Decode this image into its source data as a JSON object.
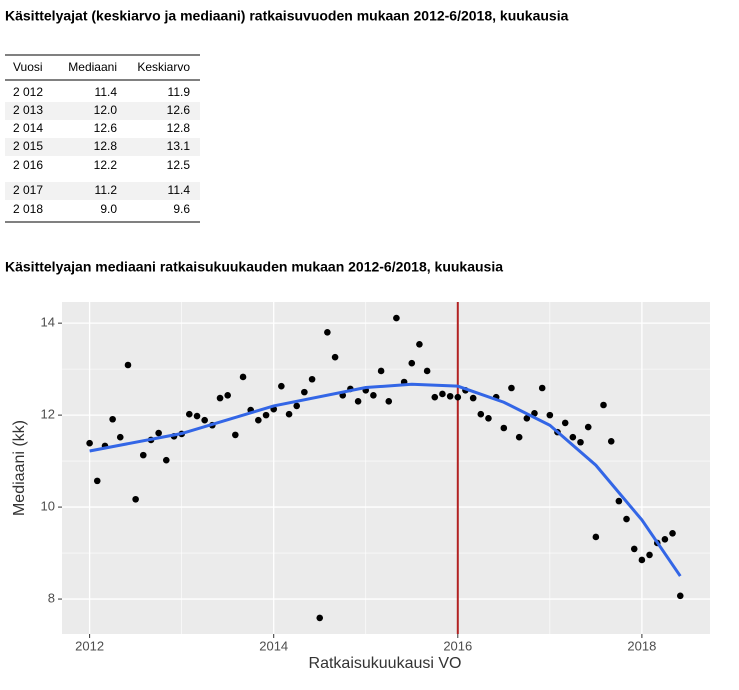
{
  "table": {
    "title": "Käsittelyajat (keskiarvo ja mediaani) ratkaisuvuoden mukaan 2012-6/2018, kuukausia",
    "columns": [
      "Vuosi",
      "Mediaani",
      "Keskiarvo"
    ],
    "rows": [
      [
        "2 012",
        "11.4",
        "11.9"
      ],
      [
        "2 013",
        "12.0",
        "12.6"
      ],
      [
        "2 014",
        "12.6",
        "12.8"
      ],
      [
        "2 015",
        "12.8",
        "13.1"
      ],
      [
        "2 016",
        "12.2",
        "12.5"
      ],
      [
        "2 017",
        "11.2",
        "11.4"
      ],
      [
        "2 018",
        "9.0",
        "9.6"
      ]
    ]
  },
  "chart_data": {
    "type": "scatter",
    "title": "Käsittelyajan mediaani ratkaisukuukauden mukaan 2012-6/2018, kuukausia",
    "x_label": "Ratkaisukuukausi VO",
    "y_label": "Mediaani (kk)",
    "x": [
      2012.0,
      2012.083,
      2012.167,
      2012.25,
      2012.333,
      2012.417,
      2012.5,
      2012.583,
      2012.667,
      2012.75,
      2012.833,
      2012.917,
      2013.0,
      2013.083,
      2013.167,
      2013.25,
      2013.333,
      2013.417,
      2013.5,
      2013.583,
      2013.667,
      2013.75,
      2013.833,
      2013.917,
      2014.0,
      2014.083,
      2014.167,
      2014.25,
      2014.333,
      2014.417,
      2014.5,
      2014.583,
      2014.667,
      2014.75,
      2014.833,
      2014.917,
      2015.0,
      2015.083,
      2015.167,
      2015.25,
      2015.333,
      2015.417,
      2015.5,
      2015.583,
      2015.667,
      2015.75,
      2015.833,
      2015.917,
      2016.0,
      2016.083,
      2016.167,
      2016.25,
      2016.333,
      2016.417,
      2016.5,
      2016.583,
      2016.667,
      2016.75,
      2016.833,
      2016.917,
      2017.0,
      2017.083,
      2017.167,
      2017.25,
      2017.333,
      2017.417,
      2017.5,
      2017.583,
      2017.667,
      2017.75,
      2017.833,
      2017.917,
      2018.0,
      2018.083,
      2018.167,
      2018.25,
      2018.333,
      2018.417
    ],
    "values": [
      11.39,
      10.57,
      11.33,
      11.91,
      11.52,
      13.09,
      10.17,
      11.13,
      11.46,
      11.61,
      11.02,
      11.54,
      11.59,
      12.02,
      11.98,
      11.89,
      11.78,
      12.37,
      12.43,
      11.57,
      12.83,
      12.11,
      11.89,
      12.0,
      12.13,
      12.63,
      12.02,
      12.2,
      12.5,
      12.78,
      7.59,
      13.8,
      13.26,
      12.43,
      12.57,
      12.3,
      12.54,
      12.43,
      12.96,
      12.3,
      14.11,
      12.72,
      13.13,
      13.54,
      12.96,
      12.39,
      12.46,
      12.41,
      12.39,
      12.54,
      12.37,
      12.02,
      11.93,
      12.39,
      11.72,
      12.59,
      11.52,
      11.93,
      12.04,
      12.59,
      12.0,
      11.63,
      11.83,
      11.52,
      11.41,
      11.74,
      9.35,
      12.22,
      11.43,
      10.13,
      9.74,
      9.09,
      8.85,
      8.96,
      9.22,
      9.3,
      9.43,
      8.07
    ],
    "color": "#000000",
    "trend": {
      "x": [
        2012,
        2013,
        2014,
        2015,
        2015.5,
        2016,
        2016.5,
        2017,
        2017.5,
        2018,
        2018.417
      ],
      "values": [
        11.22,
        11.6,
        12.2,
        12.6,
        12.67,
        12.63,
        12.28,
        11.78,
        10.91,
        9.72,
        8.5
      ],
      "color": "#3366e6"
    },
    "vline": {
      "x": 2016,
      "color": "#b22222"
    },
    "xlim": [
      2011.7,
      2018.74
    ],
    "xticks": [
      2012,
      2014,
      2016,
      2018
    ],
    "ylim": [
      7.24,
      14.46
    ],
    "yticks": [
      8,
      10,
      12,
      14
    ],
    "grid": true
  }
}
